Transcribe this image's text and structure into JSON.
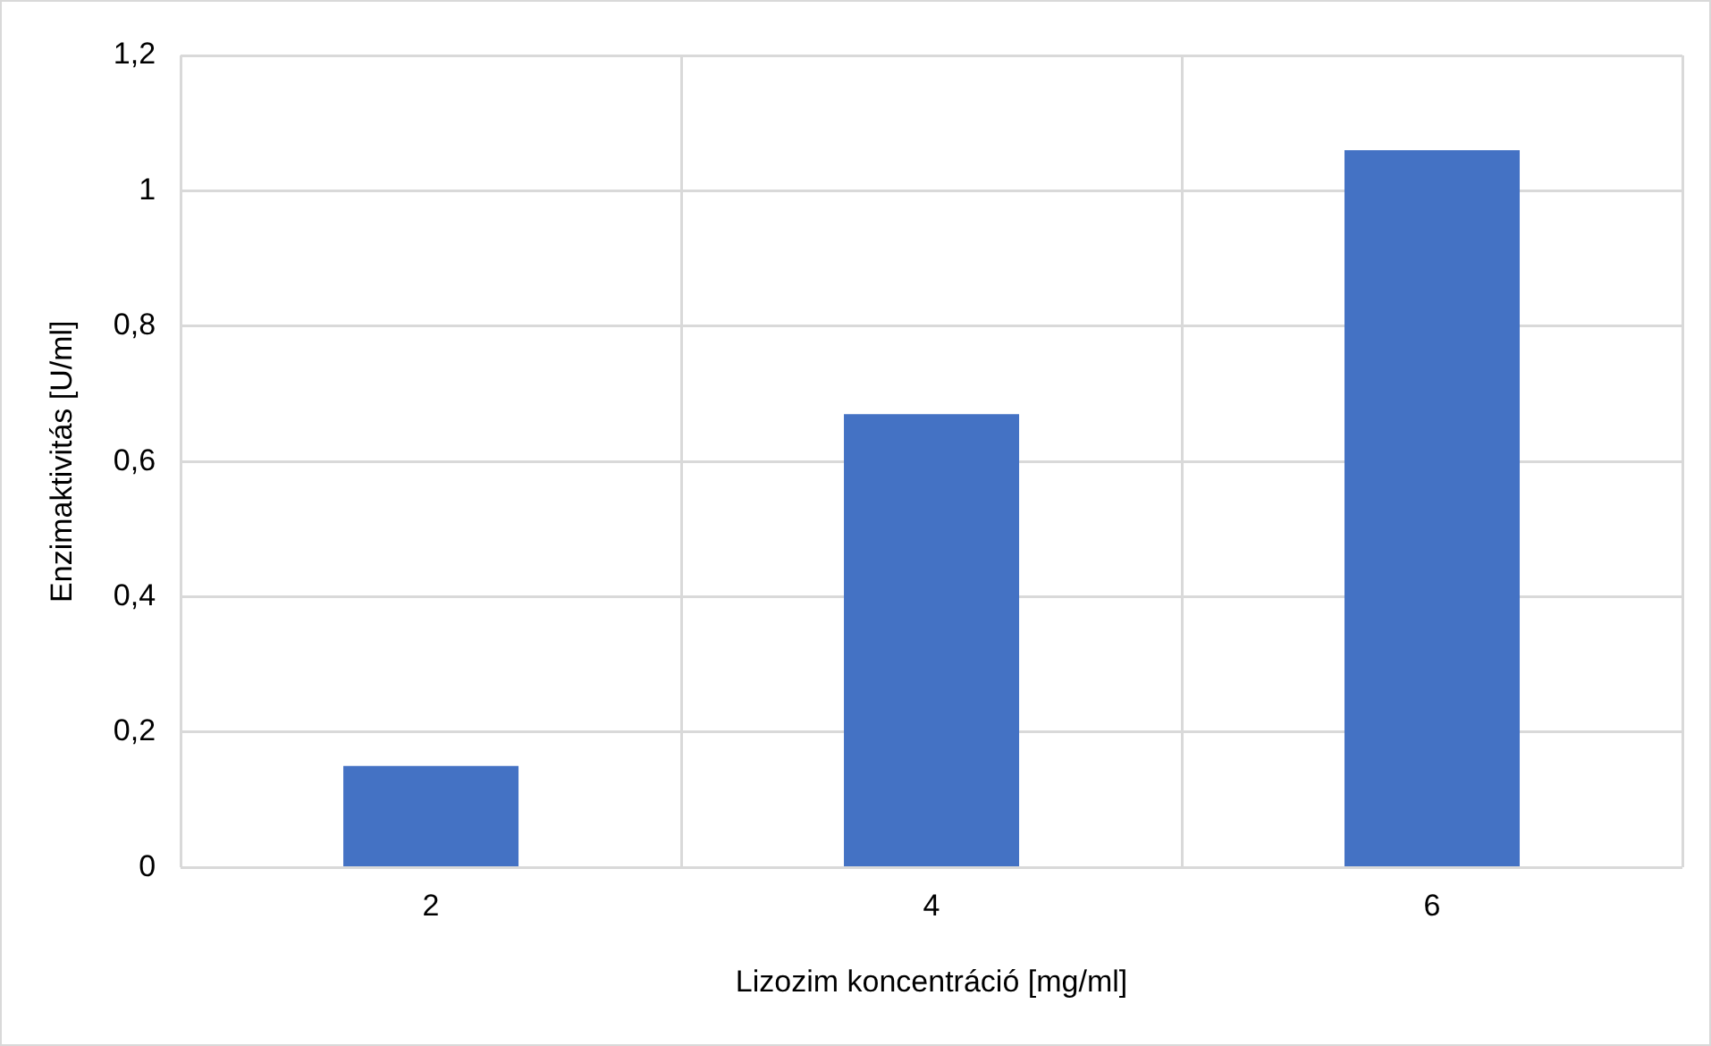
{
  "chart_data": {
    "type": "bar",
    "xlabel": "Lizozim koncentráció [mg/ml]",
    "ylabel": "Enzimaktivitás [U/ml]",
    "categories": [
      "2",
      "4",
      "6"
    ],
    "values": [
      0.15,
      0.67,
      1.06
    ],
    "color": "#4472c4",
    "ylim": [
      0,
      1.2
    ],
    "yticks": [
      0,
      {
        "value": 0.2,
        "label": "0,2"
      },
      {
        "value": 0.4,
        "label": "0,4"
      },
      {
        "value": 0.6,
        "label": "0,6"
      },
      {
        "value": 0.8,
        "label": "0,8"
      },
      1,
      {
        "value": 1.2,
        "label": "1,2"
      }
    ],
    "grid": true
  }
}
